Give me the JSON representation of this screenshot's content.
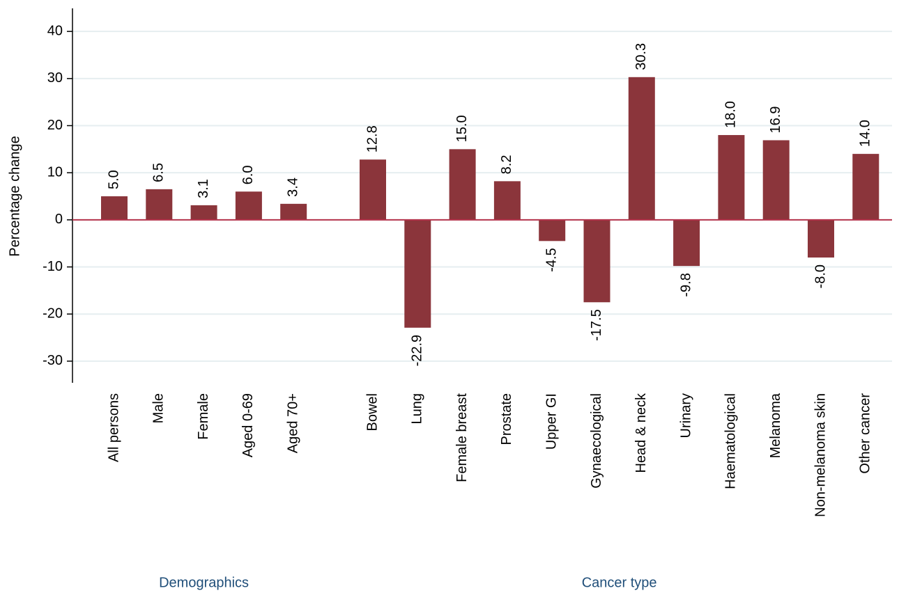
{
  "chart_data": {
    "type": "bar",
    "y_label": "Percentage change",
    "categories": [
      "All persons",
      "Male",
      "Female",
      "Aged 0-69",
      "Aged 70+",
      "Bowel",
      "Lung",
      "Female breast",
      "Prostate",
      "Upper GI",
      "Gynaecological",
      "Head & neck",
      "Urinary",
      "Haematological",
      "Melanoma",
      "Non-melanoma skin",
      "Other cancer"
    ],
    "values": [
      5.0,
      6.5,
      3.1,
      6.0,
      3.4,
      12.8,
      -22.9,
      15.0,
      8.2,
      -4.5,
      -17.5,
      30.3,
      -9.8,
      18.0,
      16.9,
      -8.0,
      14.0
    ],
    "value_labels": [
      "5.0",
      "6.5",
      "3.1",
      "6.0",
      "3.4",
      "12.8",
      "-22.9",
      "15.0",
      "8.2",
      "-4.5",
      "-17.5",
      "30.3",
      "-9.8",
      "18.0",
      "16.9",
      "-8.0",
      "14.0"
    ],
    "groups": [
      "Demographics",
      "Cancer type"
    ],
    "color": "#8b353b",
    "zero_line_color": "#b5334c",
    "ylim": [
      -34.6,
      44.9
    ],
    "yticks": [
      -30,
      -20,
      -10,
      0,
      10,
      20,
      30,
      40
    ],
    "grid": true
  }
}
